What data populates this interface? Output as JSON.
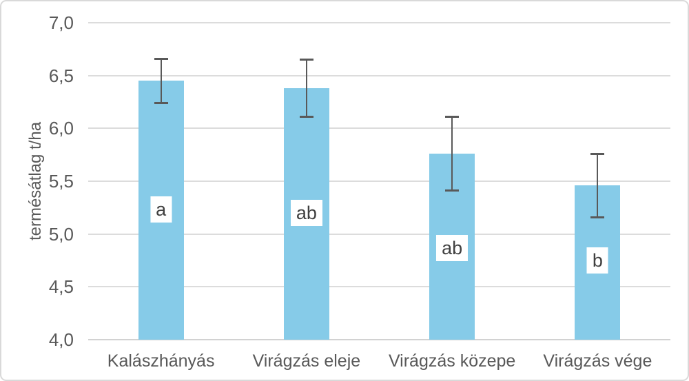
{
  "chart_data": {
    "type": "bar",
    "title": "",
    "xlabel": "",
    "ylabel": "termésátlag t/ha",
    "categories": [
      "Kalászhányás",
      "Virágzás eleje",
      "Virágzás közepe",
      "Virágzás vége"
    ],
    "values": [
      6.45,
      6.38,
      5.76,
      5.46
    ],
    "error_bars": [
      0.22,
      0.28,
      0.36,
      0.31
    ],
    "significance_letters": [
      "a",
      "ab",
      "ab",
      "b"
    ],
    "letter_center_values": [
      5.23,
      5.2,
      4.87,
      4.75
    ],
    "ylim": [
      4.0,
      7.0
    ],
    "ytick_step": 0.5,
    "ytick_labels": [
      "4,0",
      "4,5",
      "5,0",
      "5,5",
      "6,0",
      "6,5",
      "7,0"
    ],
    "decimal_separator": ",",
    "grid": true,
    "legend": "none",
    "colors": {
      "bar_fill": "#86CBE8",
      "error_bar": "#595959",
      "text": "#595959",
      "letter_text": "#404040",
      "gridline": "#DCDCDC",
      "axis_line": "#D2D2D2",
      "chart_border": "#D9D9D9",
      "background": "#FFFFFF",
      "letter_box_bg": "#FFFFFF"
    }
  }
}
